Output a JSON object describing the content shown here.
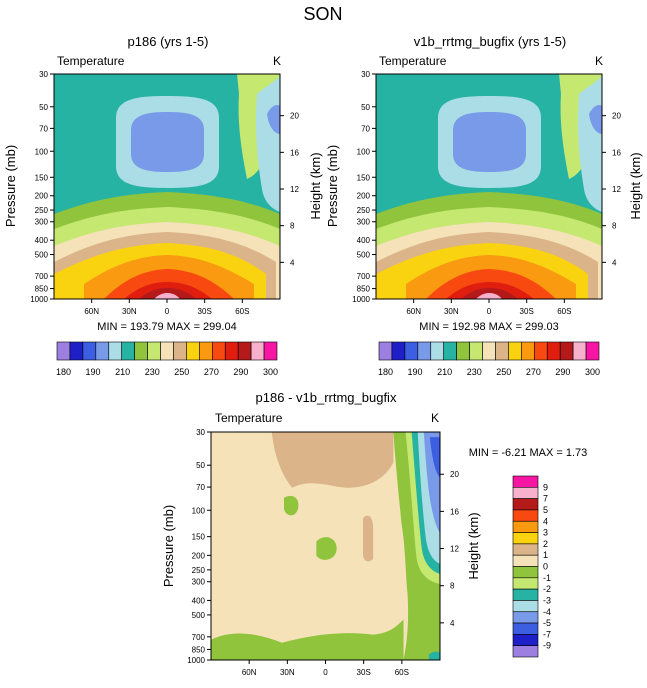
{
  "figure": {
    "title": "SON"
  },
  "chart_data": [
    {
      "type": "contour",
      "title": "p186 (yrs 1-5)",
      "variable": "Temperature",
      "units": "K",
      "ylabel": "Pressure (mb)",
      "ylabel_right": "Height (km)",
      "xticks": [
        "60N",
        "30N",
        "0",
        "30S",
        "60S"
      ],
      "yticks": [
        "30",
        "50",
        "70",
        "100",
        "150",
        "200",
        "250",
        "300",
        "400",
        "500",
        "700",
        "850",
        "1000"
      ],
      "height_ticks": [
        "20",
        "16",
        "12",
        "8",
        "4"
      ],
      "stats": "MIN = 193.79  MAX = 299.04",
      "colorbar_labels": [
        "180",
        "190",
        "210",
        "230",
        "250",
        "270",
        "290",
        "300"
      ]
    },
    {
      "type": "contour",
      "title": "v1b_rrtmg_bugfix (yrs 1-5)",
      "variable": "Temperature",
      "units": "K",
      "ylabel": "Pressure (mb)",
      "ylabel_right": "Height (km)",
      "xticks": [
        "60N",
        "30N",
        "0",
        "30S",
        "60S"
      ],
      "yticks": [
        "30",
        "50",
        "70",
        "100",
        "150",
        "200",
        "250",
        "300",
        "400",
        "500",
        "700",
        "850",
        "1000"
      ],
      "height_ticks": [
        "20",
        "16",
        "12",
        "8",
        "4"
      ],
      "stats": "MIN = 192.98  MAX = 299.03",
      "colorbar_labels": [
        "180",
        "190",
        "210",
        "230",
        "250",
        "270",
        "290",
        "300"
      ]
    },
    {
      "type": "contour",
      "title": "p186 - v1b_rrtmg_bugfix",
      "variable": "Temperature",
      "units": "K",
      "ylabel": "Pressure (mb)",
      "ylabel_right": "Height (km)",
      "xticks": [
        "60N",
        "30N",
        "0",
        "30S",
        "60S"
      ],
      "yticks": [
        "30",
        "50",
        "70",
        "100",
        "150",
        "200",
        "250",
        "300",
        "400",
        "500",
        "700",
        "850",
        "1000"
      ],
      "height_ticks": [
        "20",
        "16",
        "12",
        "8",
        "4"
      ],
      "stats": "MIN =  -6.21  MAX =   1.73",
      "colorbar_labels": [
        "9",
        "7",
        "5",
        "4",
        "3",
        "2",
        "1",
        "0",
        "-1",
        "-2",
        "-3",
        "-4",
        "-5",
        "-7",
        "-9"
      ]
    }
  ],
  "colors": {
    "temp_levels": [
      "#9c7fe0",
      "#1f1fc8",
      "#3c5ee0",
      "#789ae8",
      "#abdde6",
      "#27b3a4",
      "#8fc43c",
      "#c4e870",
      "#f5e2b8",
      "#dbb489",
      "#f9d310",
      "#f99a10",
      "#f84a10",
      "#e01e10",
      "#b51a1a",
      "#f7b1cc",
      "#f716a4"
    ],
    "diff_levels": [
      "#f716a4",
      "#f7b1cc",
      "#b51a1a",
      "#f84a10",
      "#f99a10",
      "#f9d310",
      "#dbb489",
      "#f5e2b8",
      "#8fc43c",
      "#c4e870",
      "#27b3a4",
      "#abdde6",
      "#789ae8",
      "#3c5ee0",
      "#1f1fc8",
      "#9c7fe0"
    ]
  }
}
